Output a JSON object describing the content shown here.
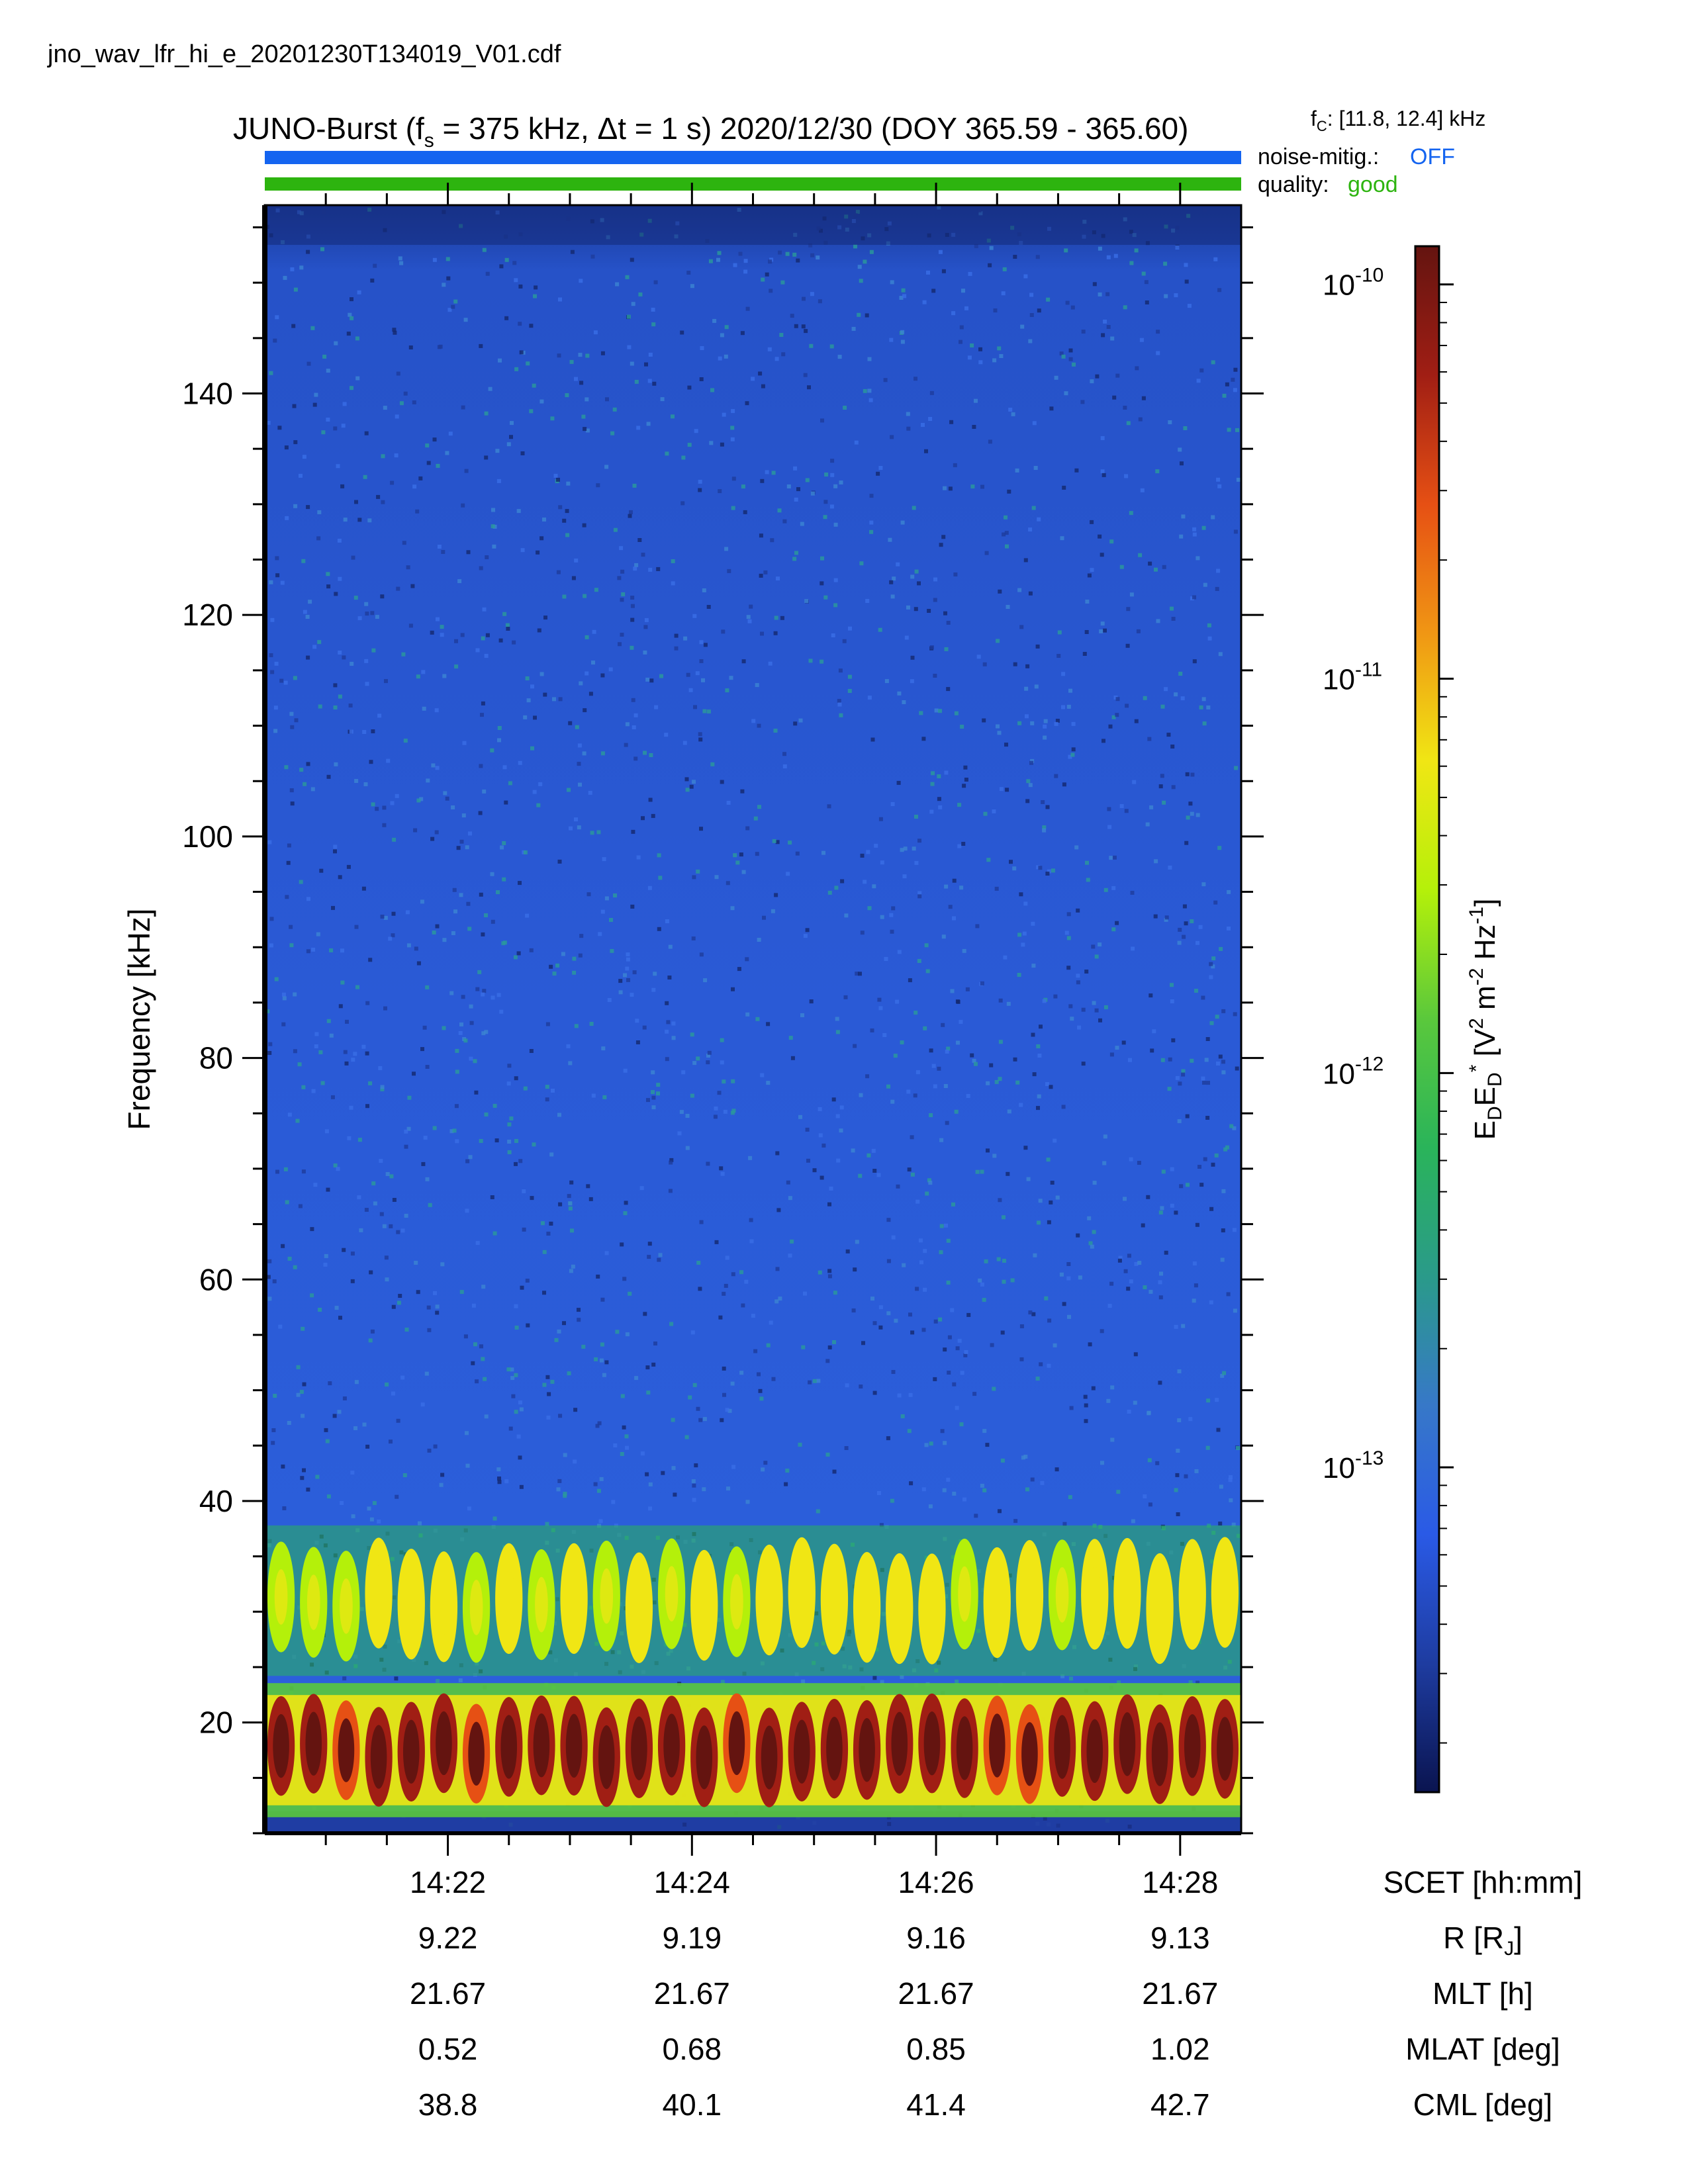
{
  "file_name": "jno_wav_lfr_hi_e_20201230T134019_V01.cdf",
  "header": {
    "title_main": "JUNO-Burst (f",
    "title_fs_sub": "s",
    "title_fs_value": " = 375 kHz, ",
    "title_delta": "Δ",
    "title_dt": "t = 1 s)  2020/12/30 (DOY 365.59 - 365.60)",
    "fc_symbol": "f",
    "fc_sub": "C",
    "fc_value": ": [11.8, 12.4] kHz",
    "noise_label": "noise-mitig.:",
    "noise_value": "OFF",
    "quality_label": "quality:",
    "quality_value": "good",
    "noise_bar_color": "#1464f0",
    "quality_bar_color": "#2db40f",
    "noise_value_color": "#1464f0",
    "quality_value_color": "#2db40f"
  },
  "chart_data": {
    "type": "heatmap",
    "title": "JUNO-Burst (fs = 375 kHz, Δt = 1 s)  2020/12/30 (DOY 365.59 - 365.60)",
    "ylabel": "Frequency [kHz]",
    "ylim": [
      10,
      157
    ],
    "y_major_ticks": [
      20,
      40,
      60,
      80,
      100,
      120,
      140
    ],
    "x_axis_label": "SCET [hh:mm]",
    "xlim": [
      "14:20:30",
      "14:28:30"
    ],
    "x_major_ticks": [
      "14:22",
      "14:24",
      "14:26",
      "14:28"
    ],
    "ephemeris": [
      {
        "label": "R [R",
        "label_sub": "J",
        "label_end": "]",
        "values": [
          "9.22",
          "9.19",
          "9.16",
          "9.13"
        ]
      },
      {
        "label": "MLT [h]",
        "values": [
          "21.67",
          "21.67",
          "21.67",
          "21.67"
        ]
      },
      {
        "label": "MLAT [deg]",
        "values": [
          "0.52",
          "0.68",
          "0.85",
          "1.02"
        ]
      },
      {
        "label": "CML [deg]",
        "values": [
          "38.8",
          "40.1",
          "41.4",
          "42.7"
        ]
      }
    ],
    "colorbar": {
      "scale": "log",
      "range": [
        1.5e-14,
        1.25e-10
      ],
      "ticks": [
        {
          "value": 1e-10,
          "base": "10",
          "exp": "-10"
        },
        {
          "value": 1e-11,
          "base": "10",
          "exp": "-11"
        },
        {
          "value": 1e-12,
          "base": "10",
          "exp": "-12"
        },
        {
          "value": 1e-13,
          "base": "10",
          "exp": "-13"
        }
      ],
      "label_E": "E",
      "label_D": "D",
      "label_star": "*",
      "label_units": " [V",
      "label_units2": " m",
      "label_units3": " Hz",
      "label_units4": "]",
      "exp_2": "2",
      "exp_m2": "-2",
      "exp_m1": "-1",
      "colormap": [
        "#0a1450",
        "#1e3ca0",
        "#2a5ae6",
        "#3778c8",
        "#2a9a8a",
        "#2ab45a",
        "#5ac83c",
        "#b4f00a",
        "#f0e614",
        "#f09614",
        "#e65014",
        "#a01e14",
        "#641410"
      ]
    },
    "features": [
      {
        "name": "background",
        "freq_range": [
          10,
          157
        ],
        "level": 2.5e-14
      },
      {
        "name": "emission band",
        "freq_range": [
          13,
          22
        ],
        "level": 6e-11
      },
      {
        "name": "emission band",
        "freq_range": [
          26,
          36
        ],
        "level": 5e-12
      }
    ]
  }
}
